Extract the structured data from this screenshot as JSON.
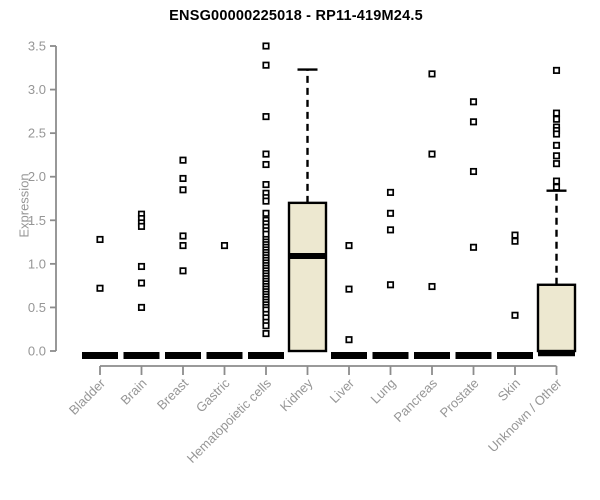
{
  "chart_data": {
    "type": "boxplot",
    "title": "ENSG00000225018 - RP11-419M24.5",
    "ylabel": "Expression",
    "ylim": [
      0,
      3.5
    ],
    "yticks": [
      [
        0,
        "0.0"
      ],
      [
        0.5,
        "0.5"
      ],
      [
        1,
        "1.0"
      ],
      [
        1.5,
        "1.5"
      ],
      [
        2,
        "2.0"
      ],
      [
        2.5,
        "2.5"
      ],
      [
        3,
        "3.0"
      ],
      [
        3.5,
        "3.5"
      ]
    ],
    "grid": "off",
    "legend": "none",
    "colors": {
      "background": "#ffffff",
      "box_fill": "#EDE8D0",
      "box_border": "#000000",
      "axis": "#8c8c8c",
      "tick_text": "#969696",
      "title_text": "#000000"
    },
    "categories": [
      "Bladder",
      "Brain",
      "Breast",
      "Gastric",
      "Hematopoietic cells",
      "Kidney",
      "Liver",
      "Lung",
      "Pancreas",
      "Prostate",
      "Skin",
      "Unknown / Other"
    ],
    "boxes": [
      {
        "label": "Bladder",
        "q1": 0,
        "median": 0,
        "q3": 0,
        "whisker_low": 0,
        "whisker_high": 0,
        "outliers": [
          1.28,
          0.72
        ]
      },
      {
        "label": "Brain",
        "q1": 0,
        "median": 0,
        "q3": 0,
        "whisker_low": 0,
        "whisker_high": 0,
        "outliers": [
          1.57,
          1.52,
          1.47,
          1.43,
          0.97,
          0.78,
          0.5
        ]
      },
      {
        "label": "Breast",
        "q1": 0,
        "median": 0,
        "q3": 0,
        "whisker_low": 0,
        "whisker_high": 0,
        "outliers": [
          2.19,
          1.98,
          1.85,
          1.32,
          1.21,
          0.92
        ]
      },
      {
        "label": "Gastric",
        "q1": 0,
        "median": 0,
        "q3": 0,
        "whisker_low": 0,
        "whisker_high": 0,
        "outliers": [
          1.21
        ]
      },
      {
        "label": "Hematopoietic cells",
        "q1": 0,
        "median": 0,
        "q3": 0,
        "whisker_low": 0,
        "whisker_high": 0,
        "outliers": [
          3.5,
          3.28,
          2.69,
          2.26,
          2.14,
          1.91,
          1.81,
          1.76,
          1.72,
          1.58,
          1.5,
          1.46,
          1.42,
          1.38,
          1.34,
          1.28,
          1.25,
          1.22,
          1.19,
          1.16,
          1.13,
          1.1,
          1.07,
          1.04,
          1.01,
          0.98,
          0.95,
          0.92,
          0.89,
          0.86,
          0.83,
          0.8,
          0.77,
          0.74,
          0.71,
          0.68,
          0.65,
          0.62,
          0.59,
          0.56,
          0.53,
          0.5,
          0.47,
          0.42,
          0.38,
          0.33,
          0.29,
          0.2
        ]
      },
      {
        "label": "Kidney",
        "q1": 0,
        "median": 1.09,
        "q3": 1.7,
        "whisker_low": 0,
        "whisker_high": 3.23,
        "outliers": []
      },
      {
        "label": "Liver",
        "q1": 0,
        "median": 0,
        "q3": 0,
        "whisker_low": 0,
        "whisker_high": 0,
        "outliers": [
          1.21,
          0.71,
          0.13
        ]
      },
      {
        "label": "Lung",
        "q1": 0,
        "median": 0,
        "q3": 0,
        "whisker_low": 0,
        "whisker_high": 0,
        "outliers": [
          1.82,
          1.58,
          1.39,
          0.76
        ]
      },
      {
        "label": "Pancreas",
        "q1": 0,
        "median": 0,
        "q3": 0,
        "whisker_low": 0,
        "whisker_high": 0,
        "outliers": [
          3.18,
          2.26,
          0.74
        ]
      },
      {
        "label": "Prostate",
        "q1": 0,
        "median": 0,
        "q3": 0,
        "whisker_low": 0,
        "whisker_high": 0,
        "outliers": [
          2.86,
          2.63,
          2.06,
          1.19
        ]
      },
      {
        "label": "Skin",
        "q1": 0,
        "median": 0,
        "q3": 0,
        "whisker_low": 0,
        "whisker_high": 0,
        "outliers": [
          1.33,
          1.26,
          0.41
        ]
      },
      {
        "label": "Unknown / Other",
        "q1": 0,
        "median": 0.02,
        "q3": 0.76,
        "whisker_low": 0,
        "whisker_high": 1.84,
        "outliers": [
          3.22,
          2.73,
          2.66,
          2.57,
          2.53,
          2.49,
          2.36,
          2.24,
          2.15,
          1.95,
          1.88
        ]
      }
    ]
  }
}
